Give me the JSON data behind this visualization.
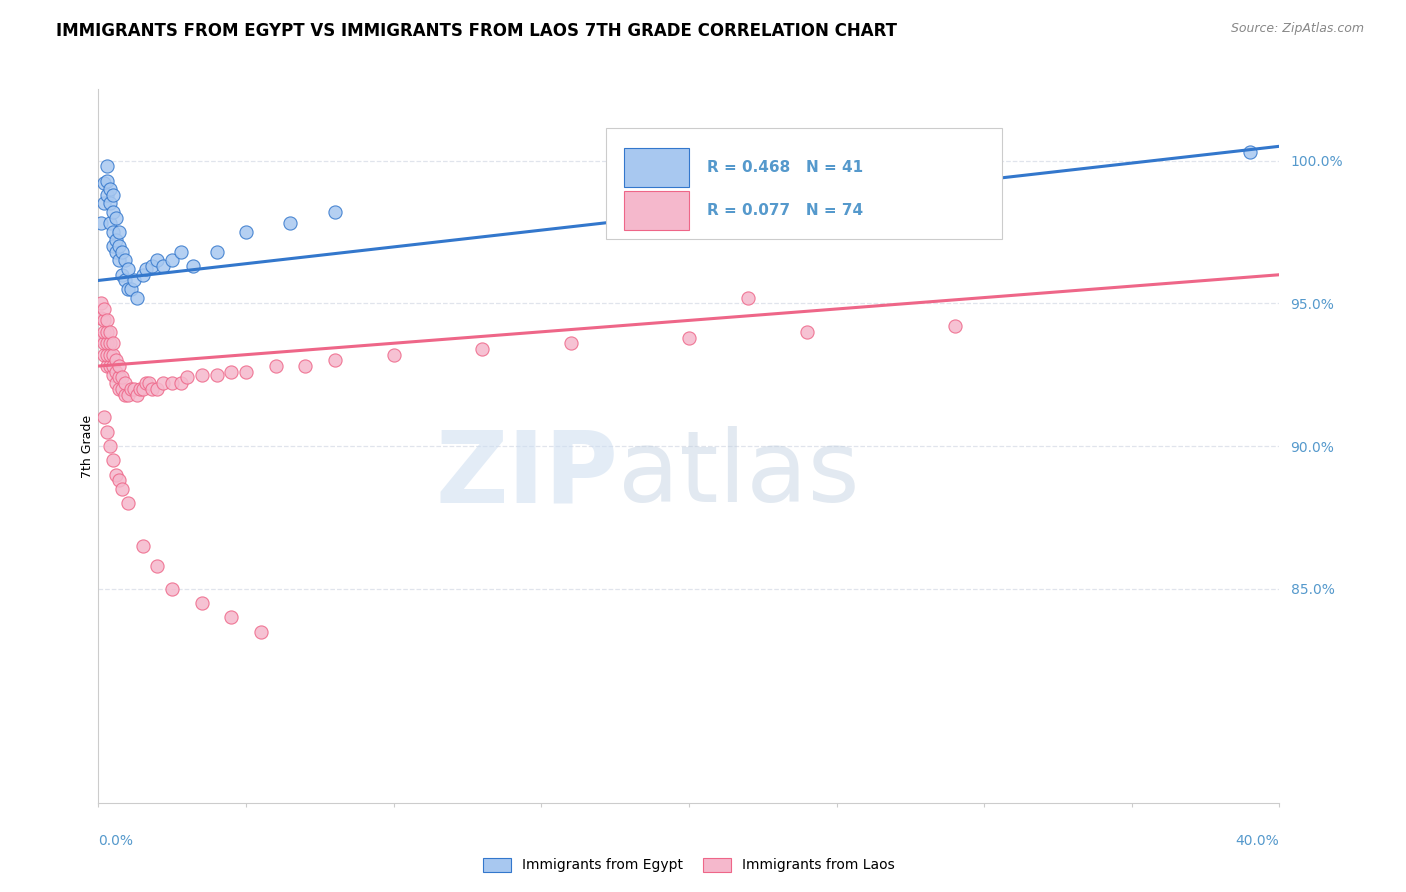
{
  "title": "IMMIGRANTS FROM EGYPT VS IMMIGRANTS FROM LAOS 7TH GRADE CORRELATION CHART",
  "source": "Source: ZipAtlas.com",
  "ylabel": "7th Grade",
  "egypt_color": "#a8c8f0",
  "laos_color": "#f5b8cc",
  "egypt_line_color": "#3377cc",
  "laos_line_color": "#ee6688",
  "legend_text_color": "#333333",
  "legend_r_color": "#f0a820",
  "tick_color": "#5599cc",
  "grid_color": "#e0e4ec",
  "axis_color": "#cccccc",
  "title_fontsize": 12,
  "source_fontsize": 9,
  "label_fontsize": 9,
  "tick_fontsize": 10,
  "xlim": [
    0.0,
    0.4
  ],
  "ylim": [
    0.775,
    1.025
  ],
  "ylabel_tick_vals": [
    1.0,
    0.95,
    0.9,
    0.85
  ],
  "ylabel_ticks": [
    "100.0%",
    "95.0%",
    "90.0%",
    "85.0%"
  ],
  "egypt_line_x": [
    0.0,
    0.4
  ],
  "egypt_line_y": [
    0.958,
    1.005
  ],
  "laos_line_x": [
    0.0,
    0.4
  ],
  "laos_line_y": [
    0.928,
    0.96
  ],
  "egypt_scatter_x": [
    0.001,
    0.002,
    0.002,
    0.003,
    0.003,
    0.003,
    0.004,
    0.004,
    0.004,
    0.005,
    0.005,
    0.005,
    0.005,
    0.006,
    0.006,
    0.006,
    0.007,
    0.007,
    0.007,
    0.008,
    0.008,
    0.009,
    0.009,
    0.01,
    0.01,
    0.011,
    0.012,
    0.013,
    0.015,
    0.016,
    0.018,
    0.02,
    0.022,
    0.025,
    0.028,
    0.032,
    0.04,
    0.05,
    0.065,
    0.08,
    0.39
  ],
  "egypt_scatter_y": [
    0.978,
    0.992,
    0.985,
    0.998,
    0.993,
    0.988,
    0.978,
    0.985,
    0.99,
    0.97,
    0.975,
    0.982,
    0.988,
    0.968,
    0.972,
    0.98,
    0.965,
    0.97,
    0.975,
    0.96,
    0.968,
    0.958,
    0.965,
    0.955,
    0.962,
    0.955,
    0.958,
    0.952,
    0.96,
    0.962,
    0.963,
    0.965,
    0.963,
    0.965,
    0.968,
    0.963,
    0.968,
    0.975,
    0.978,
    0.982,
    1.003
  ],
  "laos_scatter_x": [
    0.001,
    0.001,
    0.001,
    0.002,
    0.002,
    0.002,
    0.002,
    0.002,
    0.003,
    0.003,
    0.003,
    0.003,
    0.003,
    0.004,
    0.004,
    0.004,
    0.004,
    0.005,
    0.005,
    0.005,
    0.005,
    0.006,
    0.006,
    0.006,
    0.007,
    0.007,
    0.007,
    0.008,
    0.008,
    0.009,
    0.009,
    0.01,
    0.011,
    0.012,
    0.013,
    0.014,
    0.015,
    0.016,
    0.017,
    0.018,
    0.02,
    0.022,
    0.025,
    0.028,
    0.03,
    0.035,
    0.04,
    0.045,
    0.05,
    0.06,
    0.07,
    0.08,
    0.1,
    0.13,
    0.16,
    0.2,
    0.24,
    0.29,
    0.002,
    0.003,
    0.004,
    0.005,
    0.006,
    0.007,
    0.008,
    0.01,
    0.015,
    0.02,
    0.025,
    0.035,
    0.045,
    0.055,
    0.22
  ],
  "laos_scatter_y": [
    0.938,
    0.945,
    0.95,
    0.932,
    0.936,
    0.94,
    0.944,
    0.948,
    0.928,
    0.932,
    0.936,
    0.94,
    0.944,
    0.928,
    0.932,
    0.936,
    0.94,
    0.925,
    0.928,
    0.932,
    0.936,
    0.922,
    0.926,
    0.93,
    0.92,
    0.924,
    0.928,
    0.92,
    0.924,
    0.918,
    0.922,
    0.918,
    0.92,
    0.92,
    0.918,
    0.92,
    0.92,
    0.922,
    0.922,
    0.92,
    0.92,
    0.922,
    0.922,
    0.922,
    0.924,
    0.925,
    0.925,
    0.926,
    0.926,
    0.928,
    0.928,
    0.93,
    0.932,
    0.934,
    0.936,
    0.938,
    0.94,
    0.942,
    0.91,
    0.905,
    0.9,
    0.895,
    0.89,
    0.888,
    0.885,
    0.88,
    0.865,
    0.858,
    0.85,
    0.845,
    0.84,
    0.835,
    0.952
  ]
}
